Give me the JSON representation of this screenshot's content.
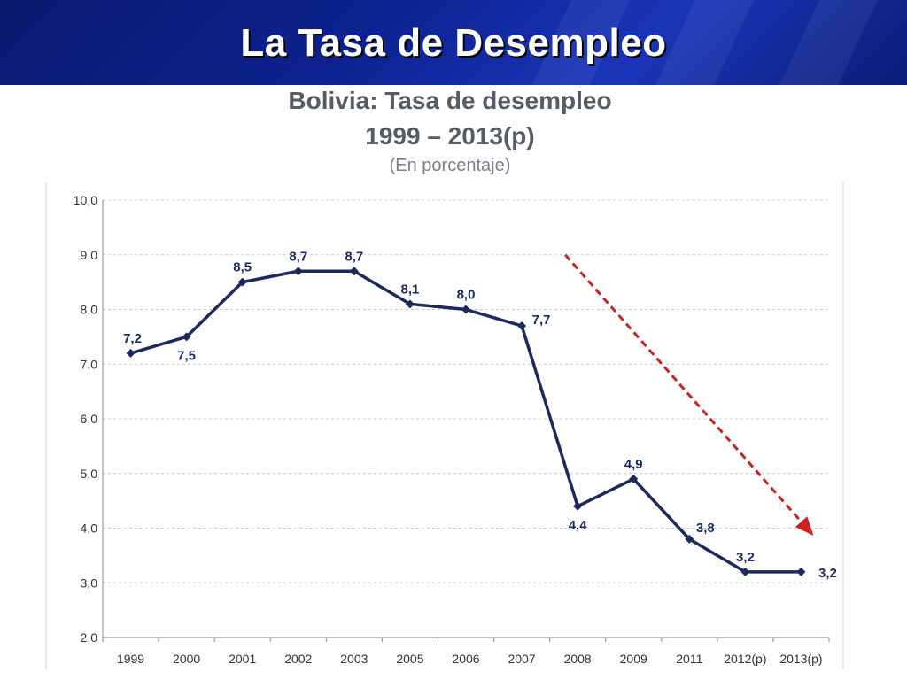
{
  "slide": {
    "title": "La Tasa de Desempleo"
  },
  "chart_data": {
    "type": "line",
    "title": "Bolivia: Tasa de desempleo",
    "subtitle": "1999 – 2013(p)",
    "note": "(En porcentaje)",
    "xlabel": "",
    "ylabel": "",
    "categories": [
      "1999",
      "2000",
      "2001",
      "2002",
      "2003",
      "2005",
      "2006",
      "2007",
      "2008",
      "2009",
      "2011",
      "2012(p)",
      "2013(p)"
    ],
    "series": [
      {
        "values": [
          7.2,
          7.5,
          8.5,
          8.7,
          8.7,
          8.1,
          8.0,
          7.7,
          4.4,
          4.9,
          3.8,
          3.2,
          3.2
        ],
        "labels": [
          "7,2",
          "7,5",
          "8,5",
          "8,7",
          "8,7",
          "8,1",
          "8,0",
          "7,7",
          "4,4",
          "4,9",
          "3,8",
          "3,2",
          "3,2"
        ],
        "color": "#1b2a5e"
      }
    ],
    "yticks": [
      "2,0",
      "3,0",
      "4,0",
      "5,0",
      "6,0",
      "7,0",
      "8,0",
      "9,0",
      "10,0"
    ],
    "ylim": [
      2.0,
      10.0
    ],
    "grid": true,
    "legend": "none",
    "annotation": {
      "type": "trend-arrow",
      "color": "#cc2222",
      "from": {
        "x": "2008",
        "y": 9.0
      },
      "to": {
        "x": "2013(p)",
        "y": 3.9
      }
    }
  }
}
